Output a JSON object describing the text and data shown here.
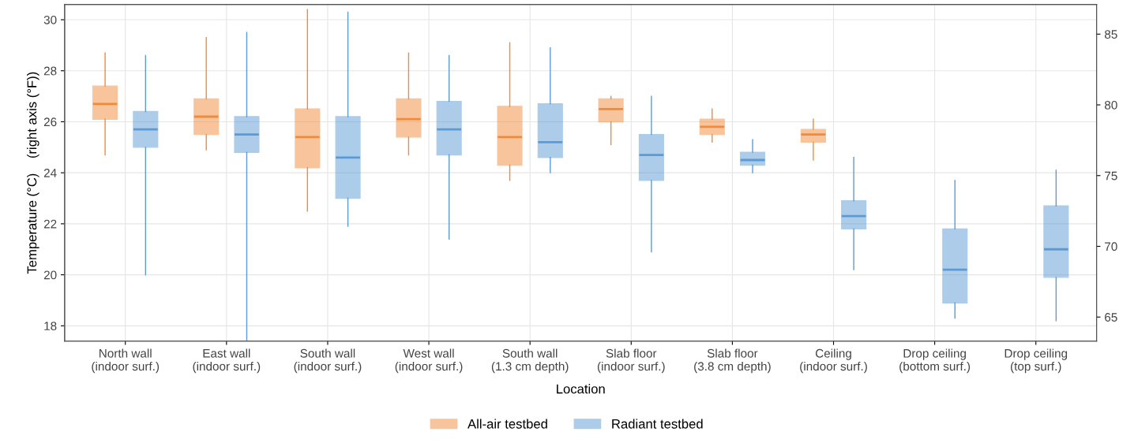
{
  "chart_data": {
    "type": "box",
    "xlabel": "Location",
    "ylabel": "Temperature (°C)    (right axis (°F))",
    "categories": [
      "North wall\n(indoor surf.)",
      "East wall\n(indoor surf.)",
      "South wall\n(indoor surf.)",
      "West wall\n(indoor surf.)",
      "South wall\n(1.3 cm depth)",
      "Slab floor\n(indoor surf.)",
      "Slab floor\n(3.8 cm depth)",
      "Ceiling\n(indoor surf.)",
      "Drop ceiling\n(bottom surf.)",
      "Drop ceiling\n(top surf.)"
    ],
    "series": [
      {
        "name": "All-air testbed",
        "color": "#f08a3c",
        "boxes": [
          {
            "low": 24.7,
            "q1": 26.1,
            "median": 26.7,
            "q3": 27.4,
            "high": 28.7
          },
          {
            "low": 24.9,
            "q1": 25.5,
            "median": 26.2,
            "q3": 26.9,
            "high": 29.3
          },
          {
            "low": 22.5,
            "q1": 24.2,
            "median": 25.4,
            "q3": 26.5,
            "high": 30.4
          },
          {
            "low": 24.7,
            "q1": 25.4,
            "median": 26.1,
            "q3": 26.9,
            "high": 28.7
          },
          {
            "low": 23.7,
            "q1": 24.3,
            "median": 25.4,
            "q3": 26.6,
            "high": 29.1
          },
          {
            "low": 25.1,
            "q1": 26.0,
            "median": 26.5,
            "q3": 26.9,
            "high": 27.0
          },
          {
            "low": 25.2,
            "q1": 25.5,
            "median": 25.8,
            "q3": 26.1,
            "high": 26.5
          },
          {
            "low": 24.5,
            "q1": 25.2,
            "median": 25.5,
            "q3": 25.7,
            "high": 26.1
          },
          null,
          null
        ]
      },
      {
        "name": "Radiant testbed",
        "color": "#5b9bd5",
        "boxes": [
          {
            "low": 20.0,
            "q1": 25.0,
            "median": 25.7,
            "q3": 26.4,
            "high": 28.6
          },
          {
            "low": 17.4,
            "q1": 24.8,
            "median": 25.5,
            "q3": 26.2,
            "high": 29.5
          },
          {
            "low": 21.9,
            "q1": 23.0,
            "median": 24.6,
            "q3": 26.2,
            "high": 30.3
          },
          {
            "low": 21.4,
            "q1": 24.7,
            "median": 25.7,
            "q3": 26.8,
            "high": 28.6
          },
          {
            "low": 24.0,
            "q1": 24.6,
            "median": 25.2,
            "q3": 26.7,
            "high": 28.9
          },
          {
            "low": 20.9,
            "q1": 23.7,
            "median": 24.7,
            "q3": 25.5,
            "high": 27.0
          },
          {
            "low": 24.0,
            "q1": 24.3,
            "median": 24.5,
            "q3": 24.8,
            "high": 25.3
          },
          {
            "low": 20.2,
            "q1": 21.8,
            "median": 22.3,
            "q3": 22.9,
            "high": 24.6
          },
          {
            "low": 18.3,
            "q1": 18.9,
            "median": 20.2,
            "q3": 21.8,
            "high": 23.7
          },
          {
            "low": 18.2,
            "q1": 19.9,
            "median": 21.0,
            "q3": 22.7,
            "high": 24.1
          }
        ]
      }
    ],
    "ylim": [
      17.4,
      30.6
    ],
    "yticks": [
      18,
      20,
      22,
      24,
      26,
      28,
      30
    ],
    "y2lim": [
      63.3,
      87.1
    ],
    "y2ticks": [
      65,
      70,
      75,
      80,
      85
    ],
    "grid": true,
    "legend": "bottom"
  }
}
